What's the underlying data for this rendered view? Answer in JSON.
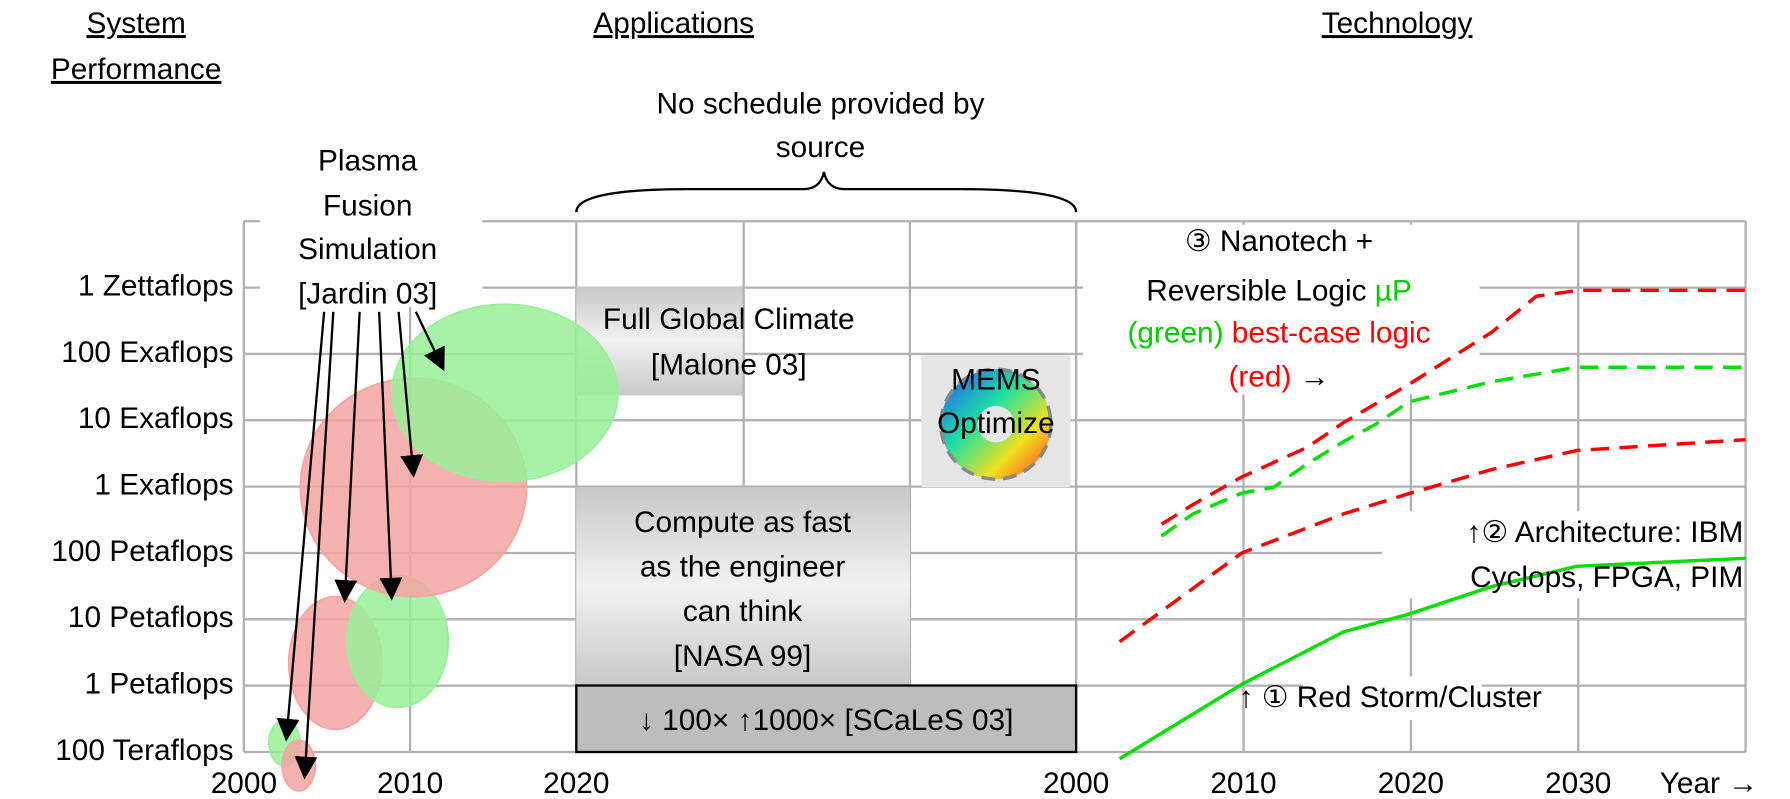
{
  "headers": {
    "performance": [
      "System",
      "Performance"
    ],
    "applications": "Applications",
    "technology": "Technology"
  },
  "y_axis": {
    "scale": "log",
    "ylim": [
      100000000000000.0,
      1e+22
    ],
    "ticks": [
      {
        "value": 1e+21,
        "label": "1 Zettaflops"
      },
      {
        "value": 1e+20,
        "label": "100 Exaflops"
      },
      {
        "value": 1e+19,
        "label": "10 Exaflops"
      },
      {
        "value": 1e+18,
        "label": "1 Exaflops"
      },
      {
        "value": 1e+17,
        "label": "100 Petaflops"
      },
      {
        "value": 1e+16,
        "label": "10 Petaflops"
      },
      {
        "value": 1000000000000000.0,
        "label": "1 Petaflops"
      },
      {
        "value": 100000000000000.0,
        "label": "100 Teraflops"
      }
    ]
  },
  "left_panel": {
    "xlim": [
      2000,
      2020
    ],
    "xticks": [
      2000,
      2010,
      2020
    ],
    "plasma_label": [
      "Plasma",
      "Fusion",
      "Simulation",
      "[Jardin 03]"
    ],
    "ellipses": [
      {
        "color": "#99f099",
        "x": [
          2001.5,
          2003.4
        ],
        "y": [
          62000000000000.0,
          300000000000000.0
        ]
      },
      {
        "color": "#f5a3a3",
        "x": [
          2002.3,
          2004.3
        ],
        "y": [
          26000000000000.0,
          150000000000000.0
        ]
      },
      {
        "color": "#f5a3a3",
        "x": [
          2002.7,
          2008.3
        ],
        "y": [
          220000000000000.0,
          2.2e+16
        ]
      },
      {
        "color": "#99f099",
        "x": [
          2006.2,
          2012.3
        ],
        "y": [
          470000000000000.0,
          4.6e+16
        ]
      },
      {
        "color": "#f5a3a3",
        "x": [
          2003.4,
          2017
        ],
        "y": [
          2.2e+16,
          4.3e+19
        ]
      },
      {
        "color": "#99f099",
        "x": [
          2008.9,
          2022.5
        ],
        "y": [
          1.2e+18,
          5.6e+20
        ]
      }
    ]
  },
  "applications": {
    "note": [
      "No schedule provided by",
      "source"
    ],
    "climate": [
      "Full Global Climate",
      "[Malone 03]"
    ],
    "compute": [
      "Compute as fast",
      "as the engineer",
      "can think",
      "[NASA 99]"
    ],
    "scales": "↓ 100× ↑1000× [SCaLeS 03]",
    "mems": [
      "MEMS",
      "Optimize"
    ]
  },
  "right_panel": {
    "xlim": [
      2000,
      2040
    ],
    "xticks": [
      2000,
      2010,
      2020,
      2030
    ],
    "x_label": "Year →",
    "series": [
      {
        "color": "#00e000",
        "dash": false,
        "x": [
          2002.6,
          2009.9,
          2016,
          2019.9,
          2024.8,
          2029.9,
          2040
        ],
        "y": [
          79000000000000.0,
          1050000000000000.0,
          6500000000000000.0,
          1.2e+16,
          3.1e+16,
          6.3e+16,
          8.3e+16
        ]
      },
      {
        "color": "#ff0000",
        "dash": true,
        "x": [
          2002.6,
          2009.9,
          2016,
          2020,
          2024.8,
          2029.9,
          2040
        ],
        "y": [
          4600000000000000.0,
          1e+17,
          3.9e+17,
          8e+17,
          1.8e+18,
          3.5e+18,
          5.1e+18
        ]
      },
      {
        "color": "#00e000",
        "dash": true,
        "x": [
          2005.1,
          2007,
          2009.9,
          2011.8,
          2013.8,
          2016,
          2017.9,
          2019.9,
          2024.8,
          2029.9,
          2040
        ],
        "y": [
          1.8e+17,
          3.9e+17,
          8e+17,
          9.8e+17,
          2.2e+18,
          4.8e+18,
          8.7e+18,
          1.9e+19,
          3.8e+19,
          6.3e+19,
          6.3e+19
        ]
      },
      {
        "color": "#ff0000",
        "dash": true,
        "x": [
          2005.1,
          2007,
          2009.9,
          2013.8,
          2016,
          2019.9,
          2024.8,
          2027.5,
          2030,
          2040
        ],
        "y": [
          2.7e+17,
          5.4e+17,
          1.4e+18,
          3.9e+18,
          9.3e+18,
          3.5e+19,
          2.1e+20,
          7.4e+20,
          9.1e+20,
          9.1e+20
        ]
      }
    ],
    "nanotech": [
      [
        {
          "text": "③ Nanotech +",
          "color": "#000000"
        }
      ],
      [
        {
          "text": "Reversible Logic ",
          "color": "#000000"
        },
        {
          "text": "µP",
          "color": "#00cc00"
        }
      ],
      [
        {
          "text": "(green) ",
          "color": "#00cc00"
        },
        {
          "text": "best-case logic",
          "color": "#ff0000"
        }
      ],
      [
        {
          "text": "(red) ",
          "color": "#ff0000"
        },
        {
          "text": "→",
          "color": "#000000"
        }
      ]
    ],
    "architecture": [
      "↑② Architecture: IBM",
      "Cyclops, FPGA, PIM"
    ],
    "red_storm": "↑ ① Red Storm/Cluster"
  }
}
